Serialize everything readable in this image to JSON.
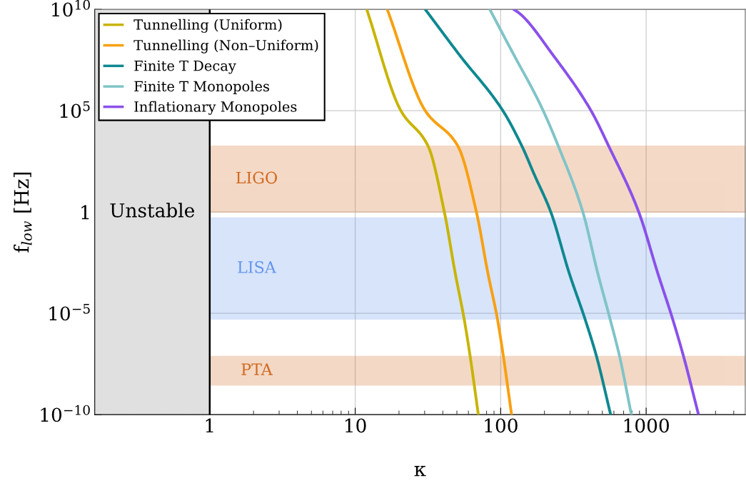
{
  "chart_data": {
    "type": "line",
    "xlabel": "κ",
    "ylabel": "f$_{low}$ [Hz]",
    "log": "xy",
    "grid": true,
    "legend": "top left",
    "xlim": [
      0.162,
      4800
    ],
    "ylim": [
      1e-10,
      10000000000.0
    ],
    "xticks": [
      {
        "value": 1,
        "label": "1"
      },
      {
        "value": 10,
        "label": "10"
      },
      {
        "value": 100,
        "label": "100"
      },
      {
        "value": 1000,
        "label": "1000"
      }
    ],
    "yticks": [
      {
        "value": 1e-10,
        "label": "10$^{−10}$"
      },
      {
        "value": 1e-05,
        "label": "10$^{−5}$"
      },
      {
        "value": 1,
        "label": "1"
      },
      {
        "value": 100000.0,
        "label": "10$^{5}$"
      },
      {
        "value": 10000000000.0,
        "label": "10$^{10}$"
      }
    ],
    "series": [
      {
        "name": "Tunnelling (Uniform)",
        "color": "#c8b400",
        "x": [
          12.0,
          20.6,
          31.7,
          41.0,
          48.7,
          56.1,
          61.7,
          70.2
        ],
        "values": [
          10000000000.0,
          100000.0,
          1780.0,
          1,
          0.00095,
          5.2e-06,
          7.4e-08,
          1e-10
        ]
      },
      {
        "name": "Tunnelling (Non–Uniform)",
        "color": "#f8a010",
        "x": [
          16.6,
          30.3,
          50.8,
          68.1,
          81.7,
          95.0,
          104.4,
          118.8
        ],
        "values": [
          10000000000.0,
          100000.0,
          1780.0,
          1,
          0.00095,
          5.2e-06,
          7.4e-08,
          1e-10
        ]
      },
      {
        "name": "Finite T Decay",
        "color": "#0e8890",
        "x": [
          30.3,
          51.9,
          103.5,
          140,
          170.6,
          221,
          296,
          380,
          456,
          570
        ],
        "values": [
          10000000000.0,
          58000000.0,
          100000.0,
          1780.0,
          68,
          1,
          0.00095,
          5.2e-06,
          7.4e-08,
          1e-10
        ]
      },
      {
        "name": "Finite T Monopoles",
        "color": "#80c4c8",
        "x": [
          84.2,
          123,
          170.6,
          196,
          249,
          367,
          465,
          565,
          657,
          791
        ],
        "values": [
          10000000000.0,
          58000000.0,
          760000.0,
          100000.0,
          1780.0,
          1,
          0.00095,
          5.2e-06,
          7.4e-08,
          1e-10
        ]
      },
      {
        "name": "Inflationary Monopoles",
        "color": "#8a50ea",
        "x": [
          123,
          136,
          228,
          418,
          553,
          889,
          1202,
          1521,
          1808,
          2291
        ],
        "values": [
          10000000000.0,
          6000000000.0,
          58000000.0,
          100000.0,
          1780.0,
          1,
          0.00095,
          5.2e-06,
          7.4e-08,
          1e-10
        ]
      }
    ],
    "bands": [
      {
        "axis": "x",
        "from": 0.162,
        "to": 1,
        "label": "Unstable",
        "color": "#e0e0e0"
      },
      {
        "axis": "y",
        "from": 1,
        "to": 1780,
        "label": "LIGO",
        "color": "#d2691e"
      },
      {
        "axis": "y",
        "from": 5.2e-06,
        "to": 0.5,
        "label": "LISA",
        "color": "#6495ed"
      },
      {
        "axis": "y",
        "from": 2.9e-09,
        "to": 7.4e-08,
        "label": "PTA",
        "color": "#d2691e"
      }
    ],
    "ref_lines": [
      {
        "axis": "x",
        "value": 1,
        "color": "#000000"
      }
    ]
  }
}
